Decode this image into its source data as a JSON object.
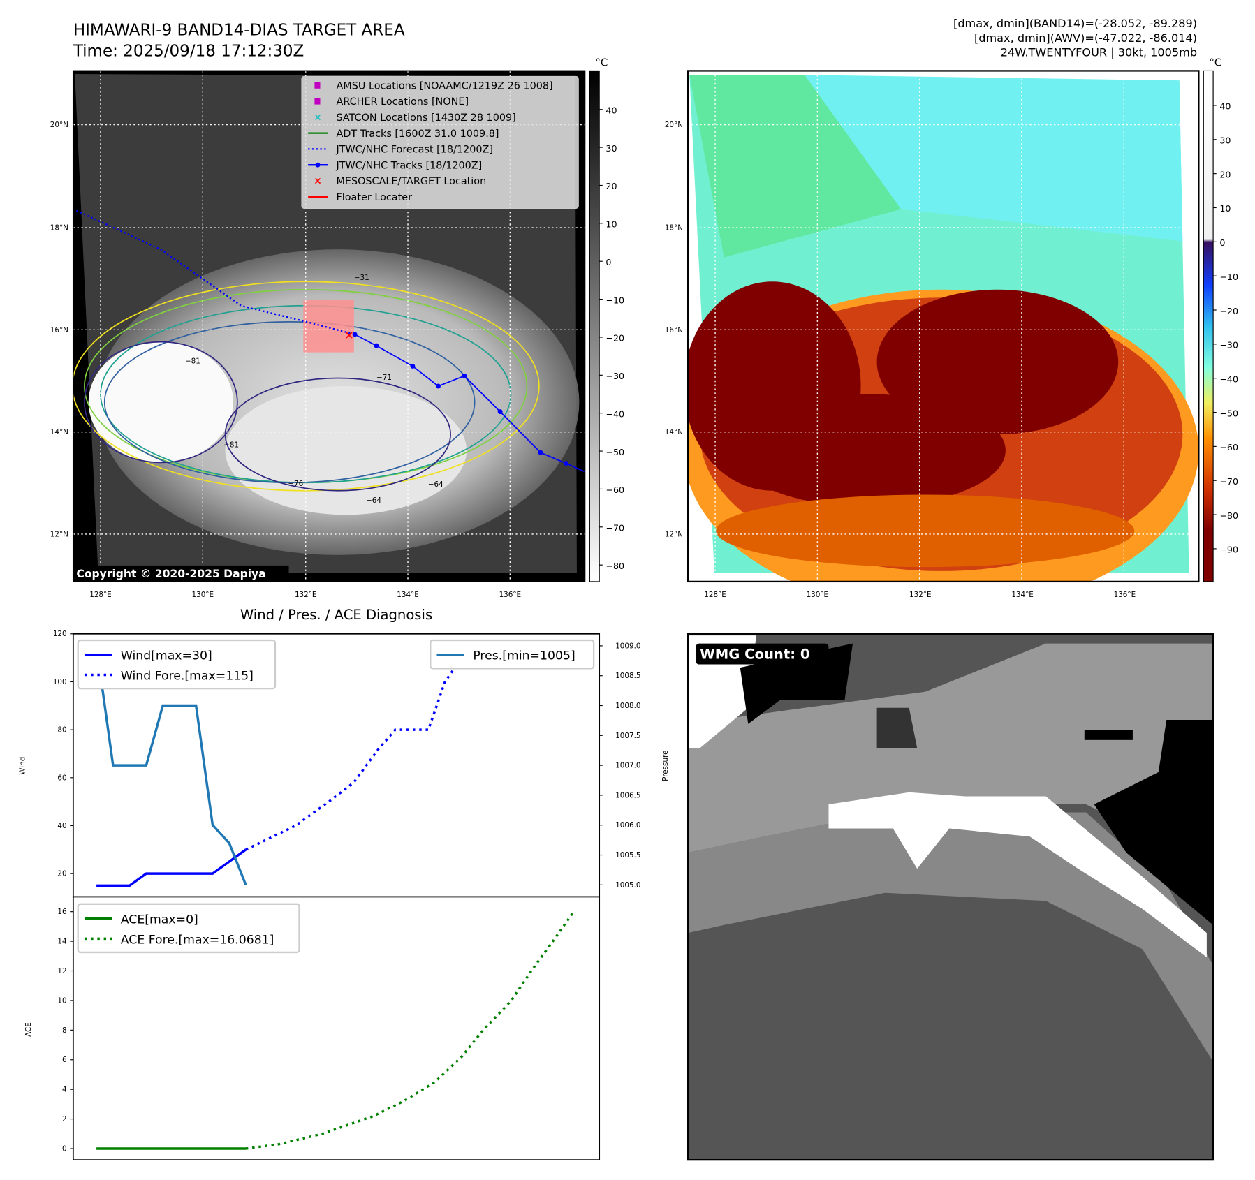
{
  "header": {
    "title": "HIMAWARI-9 BAND14-DIAS TARGET AREA",
    "time": "Time: 2025/09/18 17:12:30Z",
    "stats_band14": "[dmax, dmin](BAND14)=(-28.052, -89.289)",
    "stats_awv": "[dmax, dmin](AWV)=(-47.022, -86.014)",
    "storm": "24W.TWENTYFOUR | 30kt, 1005mb"
  },
  "map_left": {
    "colorbar_unit": "°C",
    "colorbar_ticks": [
      "40",
      "30",
      "20",
      "10",
      "0",
      "−10",
      "−20",
      "−30",
      "−40",
      "−50",
      "−60",
      "−70",
      "−80"
    ],
    "lon_labels": [
      "128°E",
      "130°E",
      "132°E",
      "134°E",
      "136°E"
    ],
    "lat_labels": [
      "20°N",
      "18°N",
      "16°N",
      "14°N",
      "12°N"
    ],
    "copyright": "Copyright © 2020-2025 Dapiya",
    "contour_labels": [
      "−31",
      "−81",
      "−76",
      "−64",
      "−64",
      "−81",
      "−71"
    ],
    "legend": [
      {
        "label": "AMSU Locations [NOAAMC/1219Z 26 1008]",
        "color": "#c000c0",
        "marker": "square"
      },
      {
        "label": "ARCHER Locations [NONE]",
        "color": "#c000c0",
        "marker": "square"
      },
      {
        "label": "SATCON Locations [1430Z 28 1009]",
        "color": "#20c0c0",
        "marker": "x"
      },
      {
        "label": "ADT Tracks [1600Z 31.0 1009.8]",
        "color": "#008000",
        "marker": "line"
      },
      {
        "label": "JTWC/NHC Forecast [18/1200Z]",
        "color": "#0000ff",
        "marker": "dotted"
      },
      {
        "label": "JTWC/NHC Tracks [18/1200Z]",
        "color": "#0000ff",
        "marker": "line-dot"
      },
      {
        "label": "MESOSCALE/TARGET Location",
        "color": "#ff0000",
        "marker": "x"
      },
      {
        "label": "Floater Locater",
        "color": "#ff0000",
        "marker": "line"
      }
    ],
    "track": [
      [
        132.97,
        15.9
      ],
      [
        133.39,
        15.68
      ],
      [
        134.1,
        15.28
      ],
      [
        134.6,
        14.89
      ],
      [
        135.11,
        15.09
      ],
      [
        135.81,
        14.39
      ],
      [
        136.6,
        13.59
      ],
      [
        137.1,
        13.38
      ],
      [
        137.5,
        13.2
      ]
    ],
    "forecast_track": [
      [
        127.53,
        18.32
      ],
      [
        129.18,
        17.56
      ],
      [
        130.75,
        16.46
      ],
      [
        132.01,
        16.15
      ],
      [
        132.97,
        15.9
      ]
    ]
  },
  "map_right": {
    "colorbar_unit": "°C",
    "colorbar_ticks": [
      "40",
      "30",
      "20",
      "10",
      "0",
      "−10",
      "−20",
      "−30",
      "−40",
      "−50",
      "−60",
      "−70",
      "−80",
      "−90"
    ],
    "lon_labels": [
      "128°E",
      "130°E",
      "132°E",
      "134°E",
      "136°E"
    ],
    "lat_labels": [
      "20°N",
      "18°N",
      "16°N",
      "14°N",
      "12°N"
    ]
  },
  "wmg": {
    "label": "WMG Count: 0"
  },
  "chart_data": [
    {
      "type": "line",
      "title": "Wind / Pres. / ACE Diagnosis",
      "ylabel": "Wind",
      "ylabel_right": "Pressure",
      "ylim": [
        10.3,
        120
      ],
      "ylim_right": [
        1004.8,
        1009.2
      ],
      "xlim": [
        -1.4,
        30.3
      ],
      "yticks": [
        20,
        40,
        60,
        80,
        100,
        120
      ],
      "yticks_right": [
        "1005.0",
        "1005.5",
        "1006.0",
        "1006.5",
        "1007.0",
        "1007.5",
        "1008.0",
        "1008.5",
        "1009.0"
      ],
      "series": [
        {
          "name": "Wind[max=30]",
          "color": "#0000ff",
          "style": "solid",
          "x": [
            0,
            1,
            2,
            3,
            4,
            5,
            6,
            7,
            8,
            9
          ],
          "y": [
            15,
            15,
            15,
            20,
            20,
            20,
            20,
            20,
            25,
            30
          ]
        },
        {
          "name": "Wind Fore.[max=115]",
          "color": "#0000ff",
          "style": "dotted",
          "x": [
            9,
            12,
            14,
            15.5,
            17,
            18,
            20,
            21,
            22,
            24,
            29
          ],
          "y": [
            30,
            40,
            50,
            58,
            72,
            80,
            80,
            100,
            110,
            115,
            115
          ]
        },
        {
          "name": "Pres.[min=1005]",
          "color": "#1f77b4",
          "style": "solid",
          "axis": "right",
          "x": [
            0,
            1,
            2,
            3,
            4,
            5,
            6,
            7,
            8,
            9
          ],
          "y": [
            1009.0,
            1007.0,
            1007.0,
            1007.0,
            1008.0,
            1008.0,
            1008.0,
            1006.0,
            1005.7,
            1005.0
          ]
        }
      ]
    },
    {
      "type": "line",
      "ylabel": "ACE",
      "ylim": [
        -0.76,
        17
      ],
      "xlim": [
        -1.4,
        30.3
      ],
      "yticks": [
        0,
        2,
        4,
        6,
        8,
        10,
        12,
        14,
        16
      ],
      "series": [
        {
          "name": "ACE[max=0]",
          "color": "#008000",
          "style": "solid",
          "x": [
            0,
            9
          ],
          "y": [
            0,
            0
          ]
        },
        {
          "name": "ACE Fore.[max=16.0681]",
          "color": "#008000",
          "style": "dotted",
          "x": [
            9,
            11,
            13.6,
            16.7,
            18.5,
            20.4,
            22,
            23.3,
            25,
            26.2,
            27.5,
            28.8
          ],
          "y": [
            0,
            0.3,
            1,
            2.2,
            3.2,
            4.5,
            6.2,
            8,
            10,
            12,
            14,
            16.07
          ]
        }
      ]
    }
  ]
}
